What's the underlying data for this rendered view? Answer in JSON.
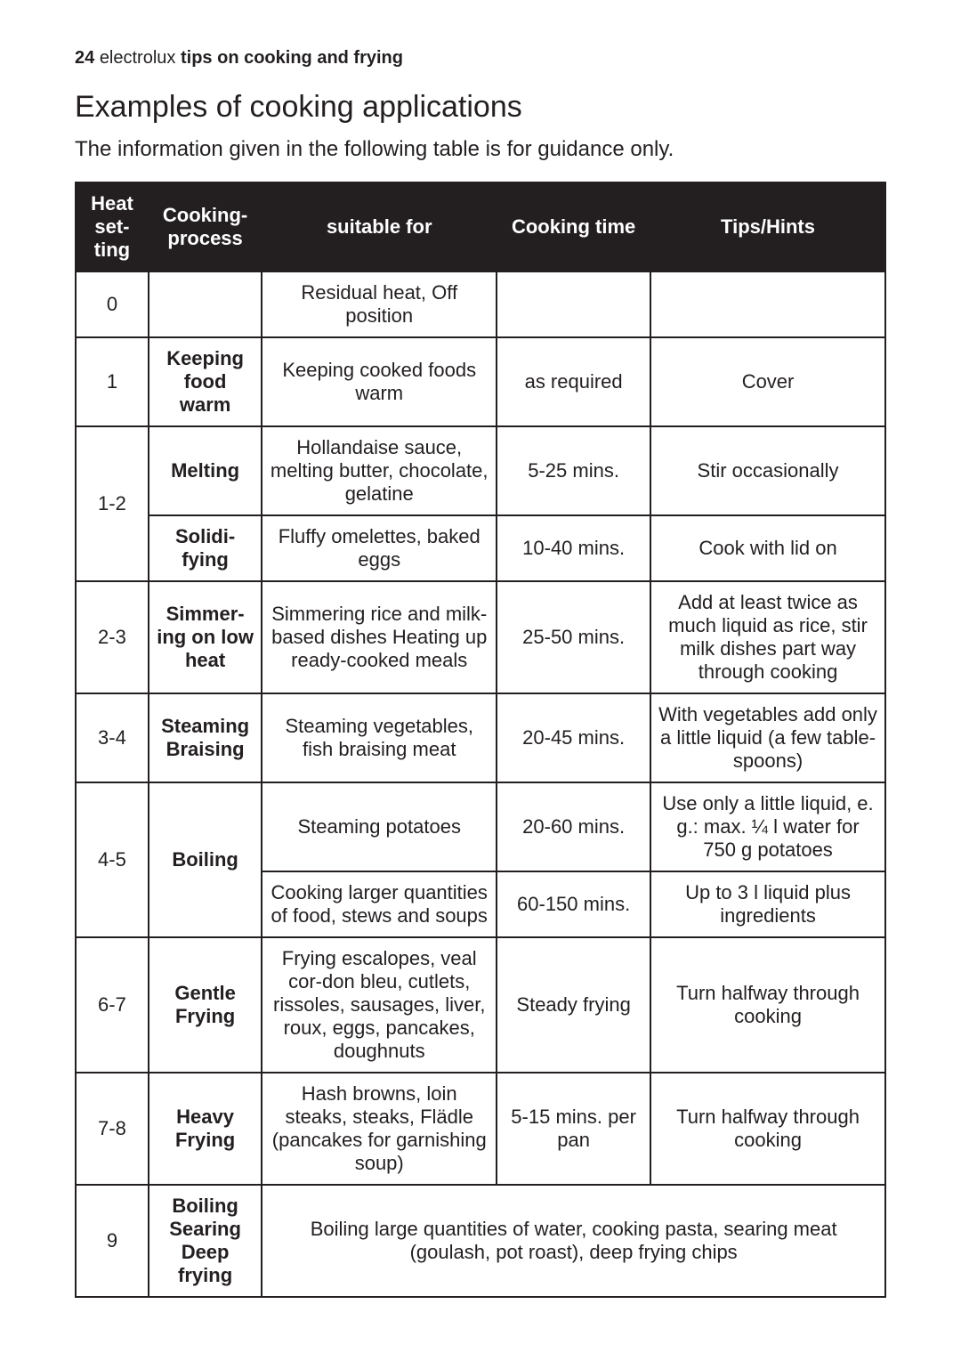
{
  "header": {
    "page_number": "24",
    "brand": "electrolux",
    "section": "tips on cooking and frying"
  },
  "title": "Examples of cooking applications",
  "intro": "The information given in the following table is for guidance only.",
  "table": {
    "columns": [
      "Heat set-ting",
      "Cooking-process",
      "suitable for",
      "Cooking time",
      "Tips/Hints"
    ],
    "header_bg": "#231f20",
    "header_fg": "#ffffff",
    "border_color": "#231f20",
    "body_fontsize": 22,
    "col_widths_pct": [
      9,
      14,
      29,
      19,
      29
    ],
    "rows": [
      {
        "heat": "0",
        "process": "",
        "suitable": "Residual heat,  Off position",
        "time": "",
        "tips": ""
      },
      {
        "heat": "1",
        "process": "Keeping food warm",
        "suitable": "Keeping cooked foods warm",
        "time": "as required",
        "tips": "Cover"
      },
      {
        "heat": "1-2",
        "heat_rowspan": 2,
        "process": "Melting",
        "suitable": "Hollandaise sauce, melting butter, chocolate, gelatine",
        "time": "5-25 mins.",
        "tips": "Stir occasionally"
      },
      {
        "process": "Solidi-fying",
        "suitable": "Fluffy omelettes, baked eggs",
        "time": "10-40 mins.",
        "tips": "Cook with lid on"
      },
      {
        "heat": "2-3",
        "process": "Simmer-ing on low heat",
        "suitable": "Simmering rice and milk-based dishes\nHeating up ready-cooked meals",
        "time": "25-50 mins.",
        "tips": "Add at least twice as much liquid as rice, stir milk dishes part way through cooking"
      },
      {
        "heat": "3-4",
        "process": "Steaming Braising",
        "suitable": "Steaming vegetables, fish braising meat",
        "time": "20-45 mins.",
        "tips": "With vegetables add only a little liquid (a few table-spoons)"
      },
      {
        "heat": "4-5",
        "heat_rowspan": 2,
        "process": "Boiling",
        "process_rowspan": 2,
        "suitable": "Steaming potatoes",
        "time": "20-60 mins.",
        "tips": "Use only a little liquid, e. g.: max. ¼  l water for 750 g potatoes"
      },
      {
        "suitable": "Cooking larger quantities of food, stews and soups",
        "time": "60-150 mins.",
        "tips": "Up to 3 l liquid plus ingredients"
      },
      {
        "heat": "6-7",
        "process": "Gentle Frying",
        "suitable": "Frying escalopes, veal cor-don bleu, cutlets, rissoles, sausages, liver, roux, eggs, pancakes, doughnuts",
        "time": "Steady frying",
        "tips": "Turn halfway through cooking"
      },
      {
        "heat": "7-8",
        "process": "Heavy Frying",
        "suitable": "Hash browns, loin steaks, steaks, Flädle (pancakes for garnishing soup)",
        "time": "5-15 mins. per pan",
        "tips": "Turn halfway through cooking"
      },
      {
        "heat": "9",
        "process": "Boiling Searing Deep frying",
        "suitable": "Boiling large quantities of water, cooking pasta, searing meat (goulash, pot roast), deep frying chips",
        "suitable_colspan": 3
      }
    ]
  }
}
